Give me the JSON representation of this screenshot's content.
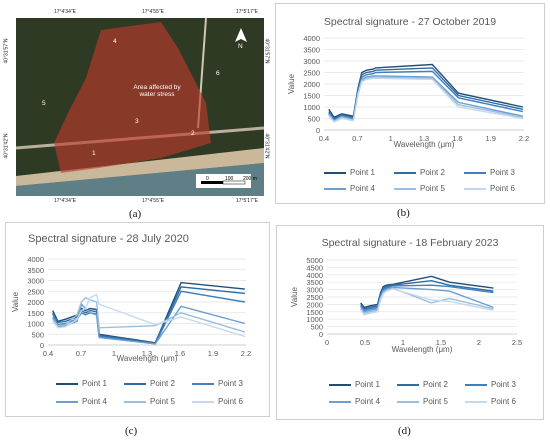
{
  "panel_labels": {
    "a": "(a)",
    "b": "(b)",
    "c": "(c)",
    "d": "(d)"
  },
  "map": {
    "annotation": "Area affected by water stress",
    "point_labels": [
      "1",
      "2",
      "3",
      "4",
      "5",
      "6"
    ],
    "top_coords": [
      "17°4'34\"E",
      "17°4'55\"E",
      "17°5'17\"E"
    ],
    "bottom_coords": [
      "17°4'34\"E",
      "17°4'55\"E",
      "17°5'17\"E"
    ],
    "left_coords": [
      "40°31'57\"N",
      "40°31'42\"N"
    ],
    "right_coords": [
      "40°31'57\"N",
      "40°31'42\"N"
    ],
    "scale_labels": [
      "0",
      "100",
      "200 m"
    ],
    "north": "N",
    "colors": {
      "vegetation": "#2f3a24",
      "affected": "#c0392b",
      "beach": "#c9b89a",
      "sea": "#5e7f86"
    }
  },
  "legend_labels": [
    "Point 1",
    "Point 2",
    "Point 3",
    "Point 4",
    "Point 5",
    "Point 6"
  ],
  "series_colors": [
    "#1f4e79",
    "#2e6da4",
    "#3f7fbf",
    "#6a9fcf",
    "#9bbfe0",
    "#c5d9ee"
  ],
  "chart_data": [
    {
      "type": "line",
      "title": "Spectral signature - 27 October 2019",
      "xlabel": "Wavelength (μm)",
      "ylabel": "Value",
      "xlim": [
        0.4,
        2.2
      ],
      "ylim": [
        0,
        4000
      ],
      "xticks": [
        "0.4",
        "0.7",
        "1",
        "1.3",
        "1.6",
        "1.9",
        "2.2"
      ],
      "yticks": [
        "0",
        "500",
        "1000",
        "1500",
        "2000",
        "2500",
        "3000",
        "3500",
        "4000"
      ],
      "x": [
        0.443,
        0.49,
        0.56,
        0.665,
        0.705,
        0.74,
        0.783,
        0.842,
        0.865,
        1.375,
        1.61,
        2.19
      ],
      "series": [
        {
          "name": "Point 1",
          "values": [
            900,
            550,
            700,
            600,
            1800,
            2500,
            2600,
            2650,
            2700,
            2850,
            1600,
            1000
          ]
        },
        {
          "name": "Point 2",
          "values": [
            800,
            500,
            650,
            550,
            1700,
            2400,
            2500,
            2550,
            2600,
            2700,
            1500,
            900
          ]
        },
        {
          "name": "Point 3",
          "values": [
            750,
            450,
            600,
            500,
            1650,
            2300,
            2400,
            2450,
            2500,
            2550,
            1400,
            800
          ]
        },
        {
          "name": "Point 4",
          "values": [
            700,
            400,
            600,
            450,
            1600,
            2200,
            2300,
            2350,
            2350,
            2300,
            1200,
            600
          ]
        },
        {
          "name": "Point 5",
          "values": [
            650,
            380,
            550,
            420,
            1550,
            2150,
            2250,
            2300,
            2300,
            2250,
            1100,
            550
          ]
        },
        {
          "name": "Point 6",
          "values": [
            600,
            350,
            500,
            400,
            1500,
            2100,
            2200,
            2250,
            2250,
            2200,
            1000,
            500
          ]
        }
      ]
    },
    {
      "type": "line",
      "title": "Spectral signature - 28 July 2020",
      "xlabel": "Wavelength (μm)",
      "ylabel": "Value",
      "xlim": [
        0.4,
        2.2
      ],
      "ylim": [
        0,
        4000
      ],
      "xticks": [
        "0.4",
        "0.7",
        "1",
        "1.3",
        "1.6",
        "1.9",
        "2.2"
      ],
      "yticks": [
        "0",
        "500",
        "1000",
        "1500",
        "2000",
        "2500",
        "3000",
        "3500",
        "4000"
      ],
      "x": [
        0.443,
        0.49,
        0.56,
        0.665,
        0.705,
        0.74,
        0.783,
        0.842,
        0.865,
        1.375,
        1.61,
        2.19
      ],
      "series": [
        {
          "name": "Point 1",
          "values": [
            1600,
            1100,
            1200,
            1400,
            1700,
            1600,
            1700,
            1650,
            500,
            100,
            2900,
            2600
          ]
        },
        {
          "name": "Point 2",
          "values": [
            1500,
            1050,
            1100,
            1300,
            1600,
            1500,
            1600,
            1550,
            450,
            80,
            2700,
            2400
          ]
        },
        {
          "name": "Point 3",
          "values": [
            1450,
            950,
            1000,
            1200,
            1500,
            1400,
            1500,
            1450,
            400,
            60,
            2500,
            2000
          ]
        },
        {
          "name": "Point 4",
          "values": [
            1300,
            850,
            900,
            1100,
            1900,
            1700,
            1500,
            1400,
            350,
            50,
            1800,
            1000
          ]
        },
        {
          "name": "Point 5",
          "values": [
            1200,
            900,
            950,
            1400,
            2000,
            2200,
            2100,
            2000,
            800,
            900,
            1500,
            600
          ]
        },
        {
          "name": "Point 6",
          "values": [
            1100,
            800,
            850,
            1200,
            1600,
            1700,
            2200,
            2350,
            1900,
            950,
            1300,
            400
          ]
        }
      ]
    },
    {
      "type": "line",
      "title": "Spectral signature - 18 February 2023",
      "xlabel": "Wavelength (μm)",
      "ylabel": "Value",
      "xlim": [
        0,
        2.5
      ],
      "ylim": [
        0,
        5000
      ],
      "xticks": [
        "0",
        "0.5",
        "1",
        "1.5",
        "2",
        "2.5"
      ],
      "yticks": [
        "0",
        "500",
        "1000",
        "1500",
        "2000",
        "2500",
        "3000",
        "3500",
        "4000",
        "4500",
        "5000"
      ],
      "x": [
        0.443,
        0.49,
        0.56,
        0.665,
        0.705,
        0.74,
        0.783,
        0.842,
        0.865,
        1.375,
        1.61,
        2.19
      ],
      "series": [
        {
          "name": "Point 1",
          "values": [
            2100,
            1800,
            1900,
            2000,
            2800,
            3200,
            3300,
            3350,
            3350,
            3900,
            3500,
            3100
          ]
        },
        {
          "name": "Point 2",
          "values": [
            2000,
            1700,
            1800,
            1900,
            2700,
            3100,
            3200,
            3300,
            3300,
            3600,
            3300,
            2900
          ]
        },
        {
          "name": "Point 3",
          "values": [
            1900,
            1600,
            1700,
            1800,
            2600,
            3000,
            3100,
            3200,
            3250,
            3300,
            3200,
            2800
          ]
        },
        {
          "name": "Point 4",
          "values": [
            1800,
            1500,
            1600,
            1700,
            2500,
            2900,
            3000,
            3100,
            3150,
            3000,
            2900,
            1800
          ]
        },
        {
          "name": "Point 5",
          "values": [
            1700,
            1400,
            1500,
            1600,
            2400,
            2800,
            2950,
            3050,
            3100,
            2100,
            2400,
            1700
          ]
        },
        {
          "name": "Point 6",
          "values": [
            1600,
            1300,
            1400,
            1500,
            2300,
            2700,
            2900,
            3000,
            3050,
            2300,
            2200,
            1600
          ]
        }
      ]
    }
  ]
}
